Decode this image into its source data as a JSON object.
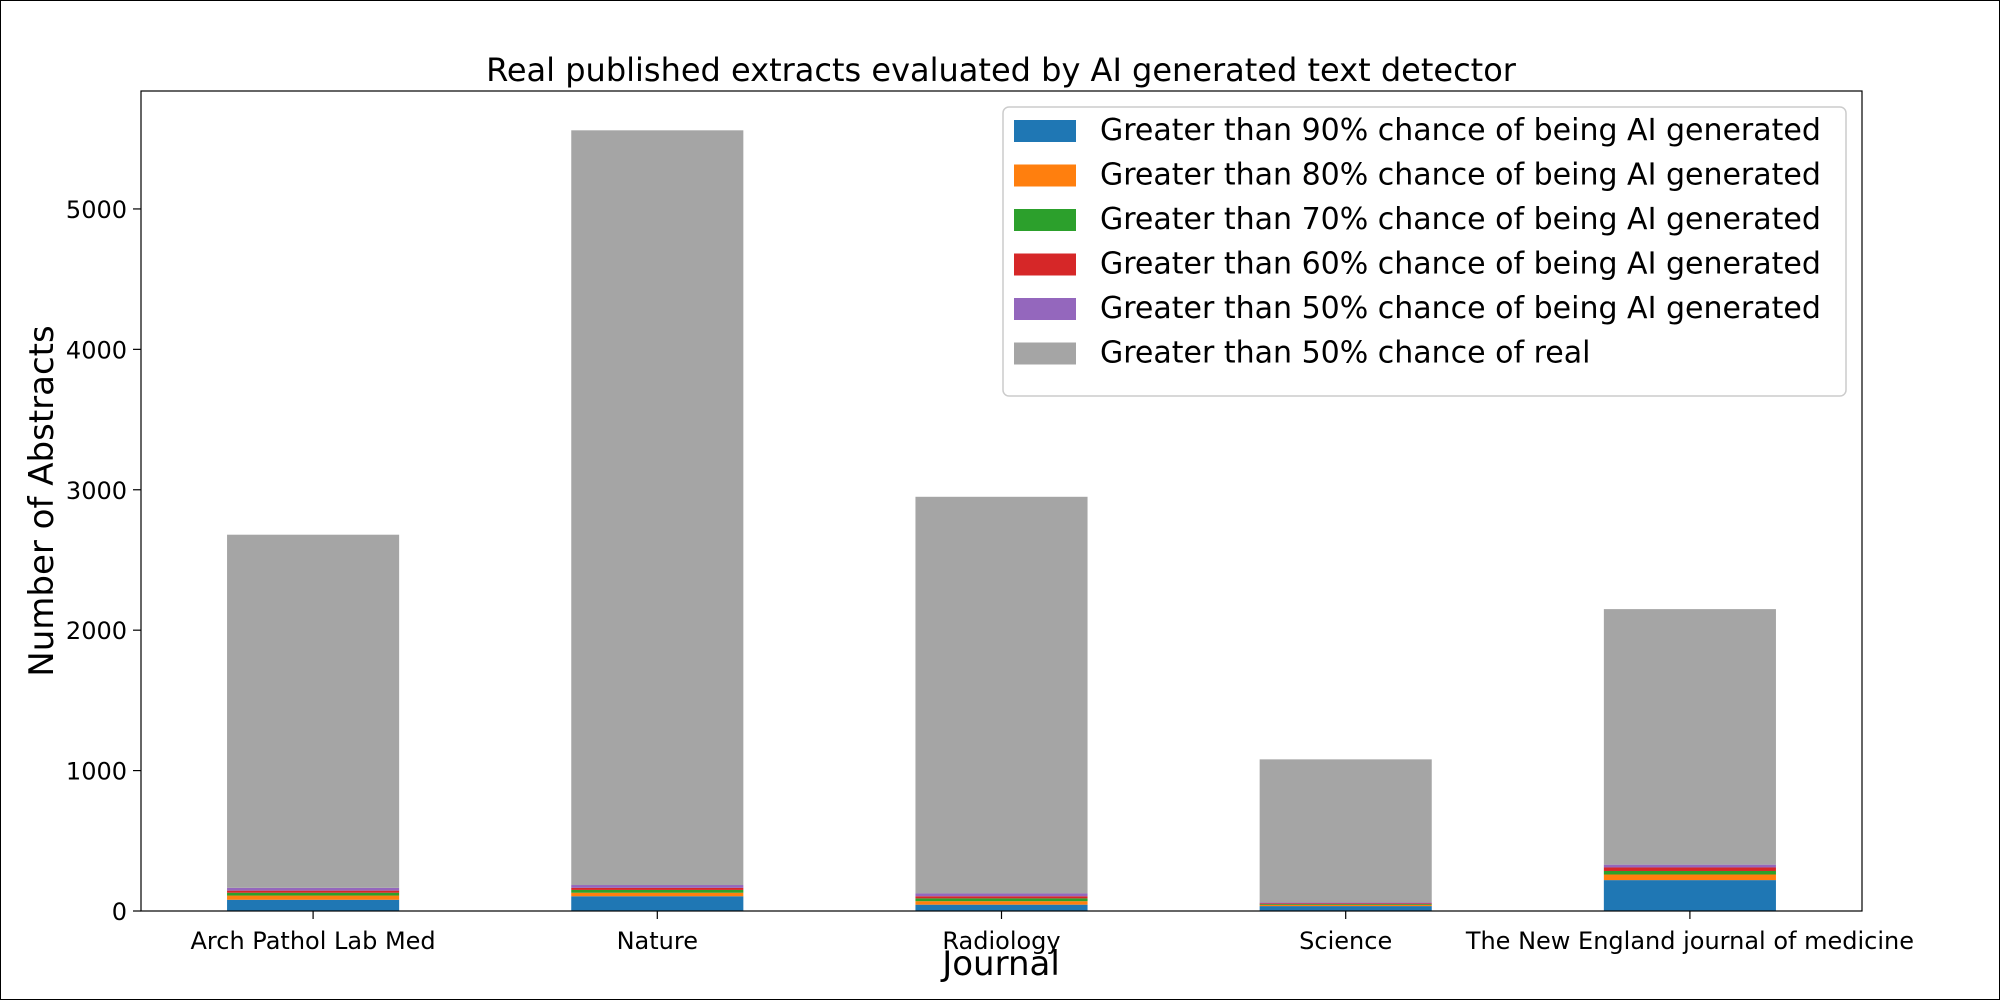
{
  "chart_data": {
    "type": "bar",
    "stacked": true,
    "title": "Real published extracts evaluated by AI generated text detector",
    "xlabel": "Journal",
    "ylabel": "Number of Abstracts",
    "ylim": [
      0,
      5840
    ],
    "yticks": [
      0,
      1000,
      2000,
      3000,
      4000,
      5000
    ],
    "grid": false,
    "legend_position": "top-right",
    "categories": [
      "Arch Pathol Lab Med",
      "Nature",
      "Radiology",
      "Science",
      "The New England journal of medicine"
    ],
    "series": [
      {
        "name": "Greater than 90% chance of being AI generated",
        "color": "#1f77b4",
        "values": [
          80,
          105,
          45,
          35,
          220
        ]
      },
      {
        "name": "Greater than 80% chance of being AI generated",
        "color": "#ff7f0e",
        "values": [
          30,
          25,
          25,
          8,
          40
        ]
      },
      {
        "name": "Greater than 70% chance of being AI generated",
        "color": "#2ca02c",
        "values": [
          20,
          20,
          20,
          6,
          25
        ]
      },
      {
        "name": "Greater than 60% chance of being AI generated",
        "color": "#d62728",
        "values": [
          15,
          15,
          15,
          5,
          25
        ]
      },
      {
        "name": "Greater than 50% chance of being AI generated",
        "color": "#9467bd",
        "values": [
          20,
          20,
          20,
          6,
          20
        ]
      },
      {
        "name": "Greater than 50% chance of real",
        "color": "#a5a5a5",
        "values": [
          2515,
          5375,
          2825,
          1020,
          1820
        ]
      }
    ]
  }
}
